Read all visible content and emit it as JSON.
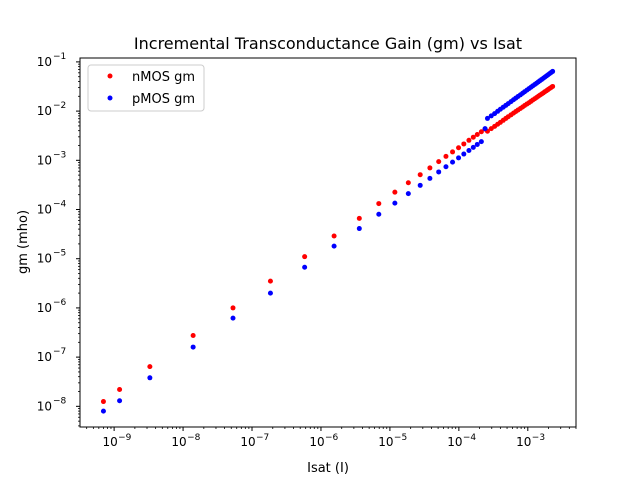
{
  "chart_data": {
    "type": "scatter",
    "title": "Incremental Transconductance Gain (gm) vs Isat",
    "xlabel": "Isat (I)",
    "ylabel": "gm (mho)",
    "xscale": "log",
    "yscale": "log",
    "xlim": [
      3.2e-10,
      0.005
    ],
    "ylim": [
      3.8e-09,
      0.12
    ],
    "grid": false,
    "legend_position": "top-left",
    "x_ticks": [
      {
        "value": 1e-09,
        "base": "10",
        "exp": "−9"
      },
      {
        "value": 1e-08,
        "base": "10",
        "exp": "−8"
      },
      {
        "value": 1e-07,
        "base": "10",
        "exp": "−7"
      },
      {
        "value": 1e-06,
        "base": "10",
        "exp": "−6"
      },
      {
        "value": 1e-05,
        "base": "10",
        "exp": "−5"
      },
      {
        "value": 0.0001,
        "base": "10",
        "exp": "−4"
      },
      {
        "value": 0.001,
        "base": "10",
        "exp": "−3"
      }
    ],
    "y_ticks": [
      {
        "value": 1e-08,
        "base": "10",
        "exp": "−8"
      },
      {
        "value": 1e-07,
        "base": "10",
        "exp": "−7"
      },
      {
        "value": 1e-06,
        "base": "10",
        "exp": "−6"
      },
      {
        "value": 1e-05,
        "base": "10",
        "exp": "−5"
      },
      {
        "value": 0.0001,
        "base": "10",
        "exp": "−4"
      },
      {
        "value": 0.001,
        "base": "10",
        "exp": "−3"
      },
      {
        "value": 0.01,
        "base": "10",
        "exp": "−2"
      },
      {
        "value": 0.1,
        "base": "10",
        "exp": "−1"
      }
    ],
    "series": [
      {
        "name": "nMOS gm",
        "color": "#ff0000",
        "x": [
          7e-10,
          1.2e-09,
          3.3e-09,
          1.4e-08,
          5.3e-08,
          1.85e-07,
          5.8e-07,
          1.55e-06,
          3.6e-06,
          6.9e-06,
          1.18e-05,
          1.85e-05,
          2.75e-05,
          3.8e-05,
          5.1e-05,
          6.5e-05,
          8.1e-05,
          9.9e-05,
          0.000118,
          0.00014,
          0.000162,
          0.000185,
          0.000212,
          0.00024,
          0.00026,
          0.000295,
          0.00033,
          0.000365,
          0.0004,
          0.00044,
          0.00048,
          0.00052,
          0.00057,
          0.00062,
          0.00067,
          0.00072,
          0.00078,
          0.00084,
          0.0009,
          0.00097,
          0.00104,
          0.00111,
          0.00118,
          0.00126,
          0.00134,
          0.00142,
          0.0015,
          0.00159,
          0.00168,
          0.00177,
          0.00187,
          0.00197,
          0.00207,
          0.00218,
          0.00229
        ],
        "y": [
          1.25e-08,
          2.2e-08,
          6.4e-08,
          2.75e-07,
          1e-06,
          3.5e-06,
          1.1e-05,
          2.9e-05,
          6.6e-05,
          0.000132,
          0.000225,
          0.00035,
          0.00051,
          0.0007,
          0.00094,
          0.0012,
          0.00148,
          0.0018,
          0.00215,
          0.00255,
          0.00295,
          0.00335,
          0.0038,
          0.0043,
          0.0039,
          0.0044,
          0.0049,
          0.0054,
          0.0059,
          0.0065,
          0.0071,
          0.0077,
          0.0084,
          0.0091,
          0.0098,
          0.0105,
          0.0113,
          0.0121,
          0.013,
          0.0139,
          0.0148,
          0.0158,
          0.0168,
          0.0178,
          0.0189,
          0.02,
          0.0211,
          0.0223,
          0.0235,
          0.0248,
          0.026,
          0.0274,
          0.0288,
          0.0302,
          0.0317
        ]
      },
      {
        "name": "pMOS gm",
        "color": "#0000ff",
        "x": [
          7e-10,
          1.2e-09,
          3.3e-09,
          1.4e-08,
          5.3e-08,
          1.85e-07,
          5.8e-07,
          1.55e-06,
          3.6e-06,
          6.9e-06,
          1.18e-05,
          1.85e-05,
          2.75e-05,
          3.8e-05,
          5.1e-05,
          6.5e-05,
          8.1e-05,
          9.9e-05,
          0.000118,
          0.00014,
          0.000162,
          0.000185,
          0.000212,
          0.00024,
          0.00026,
          0.000295,
          0.00033,
          0.000365,
          0.0004,
          0.00044,
          0.00048,
          0.00052,
          0.00057,
          0.00062,
          0.00067,
          0.00072,
          0.00078,
          0.00084,
          0.0009,
          0.00097,
          0.00104,
          0.00111,
          0.00118,
          0.00126,
          0.00134,
          0.00142,
          0.0015,
          0.00159,
          0.00168,
          0.00177,
          0.00187,
          0.00197,
          0.00207,
          0.00218,
          0.00229
        ],
        "y": [
          8e-09,
          1.3e-08,
          3.8e-08,
          1.6e-07,
          6.2e-07,
          2e-06,
          6.7e-06,
          1.8e-05,
          4.1e-05,
          8e-05,
          0.000135,
          0.00021,
          0.00031,
          0.00043,
          0.00058,
          0.00074,
          0.00092,
          0.00112,
          0.00134,
          0.00158,
          0.00183,
          0.0021,
          0.0024,
          0.0044,
          0.0071,
          0.008,
          0.0089,
          0.0099,
          0.0109,
          0.012,
          0.0131,
          0.0142,
          0.0156,
          0.017,
          0.0184,
          0.0198,
          0.0214,
          0.0231,
          0.0248,
          0.0267,
          0.0286,
          0.0305,
          0.0325,
          0.0347,
          0.0369,
          0.0392,
          0.0415,
          0.044,
          0.0465,
          0.0491,
          0.0519,
          0.0548,
          0.0577,
          0.0608,
          0.064
        ]
      }
    ]
  }
}
